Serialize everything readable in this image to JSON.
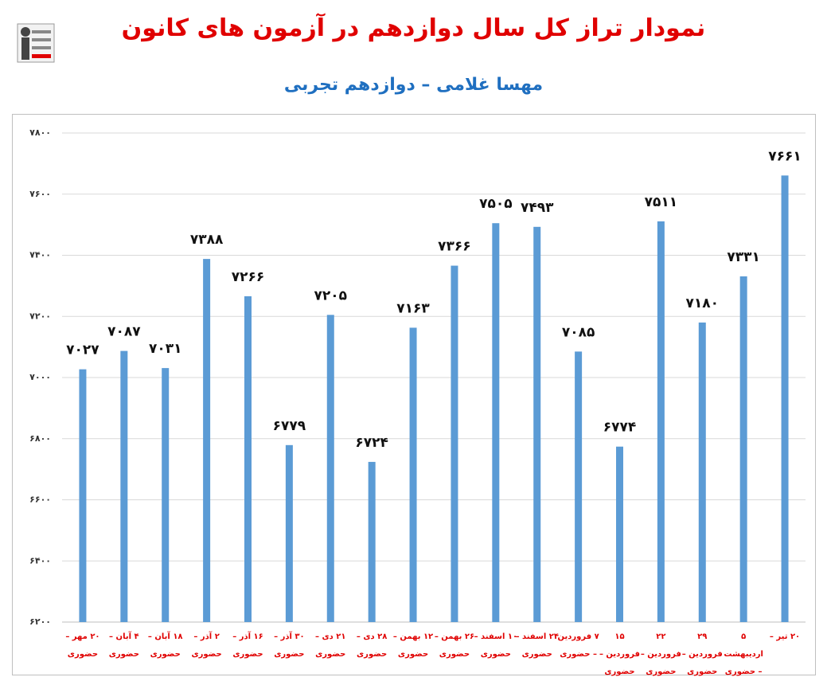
{
  "chart_data": {
    "type": "bar",
    "title": "نمودار تراز کل سال دوازدهم در آزمون های کانون",
    "subtitle": "مهسا غلامی – دوازدهم تجربی",
    "categories": [
      "۲۰ مهر – حضوری",
      "۴ آبان – حضوری",
      "۱۸ آبان – حضوری",
      "۲ آذر – حضوری",
      "۱۶ آذر – حضوری",
      "۳۰ آذر – حضوری",
      "۲۱ دی – حضوری",
      "۲۸ دی – حضوری",
      "۱۲ بهمن – حضوری",
      "۲۶ بهمن – حضوری",
      "۱۰ اسفند – حضوری",
      "۲۴ اسفند – حضوری",
      "۷ فروردین – حضوری",
      "۱۵ فروردین – حضوری",
      "۲۲ فروردین – حضوری",
      "۲۹ فروردین – حضوری",
      "۵ اردیبهشت – حضوری",
      "۲۰ تیر –"
    ],
    "values": [
      7027,
      7087,
      7031,
      7388,
      7266,
      6779,
      7205,
      6724,
      7163,
      7366,
      7505,
      7493,
      7085,
      6774,
      7511,
      7180,
      7331,
      7661
    ],
    "value_labels": [
      "۷۰۲۷",
      "۷۰۸۷",
      "۷۰۳۱",
      "۷۳۸۸",
      "۷۲۶۶",
      "۶۷۷۹",
      "۷۲۰۵",
      "۶۷۲۴",
      "۷۱۶۳",
      "۷۳۶۶",
      "۷۵۰۵",
      "۷۴۹۳",
      "۷۰۸۵",
      "۶۷۷۴",
      "۷۵۱۱",
      "۷۱۸۰",
      "۷۳۳۱",
      "۷۶۶۱"
    ],
    "color": "#5b9bd5",
    "ylim": [
      6200,
      7800
    ],
    "yticks": [
      {
        "value": 6200,
        "label": "۶۲۰۰"
      },
      {
        "value": 6400,
        "label": "۶۴۰۰"
      },
      {
        "value": 6600,
        "label": "۶۶۰۰"
      },
      {
        "value": 6800,
        "label": "۶۸۰۰"
      },
      {
        "value": 7000,
        "label": "۷۰۰۰"
      },
      {
        "value": 7200,
        "label": "۷۲۰۰"
      },
      {
        "value": 7400,
        "label": "۷۴۰۰"
      },
      {
        "value": 7600,
        "label": "۷۶۰۰"
      },
      {
        "value": 7800,
        "label": "۷۸۰۰"
      }
    ],
    "grid": true
  }
}
